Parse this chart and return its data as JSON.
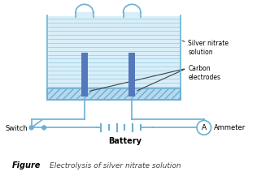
{
  "bg_color": "#ffffff",
  "diagram_color": "#6ab0d4",
  "electrode_color": "#5577bb",
  "text_color": "#000000",
  "title": "Figure",
  "caption": "Electrolysis of silver nitrate solution",
  "label_silver": "Silver nitrate\nsolution",
  "label_carbon": "Carbon\nelectrodes",
  "label_switch": "Switch",
  "label_ammeter": "Ammeter",
  "label_battery": "Battery"
}
